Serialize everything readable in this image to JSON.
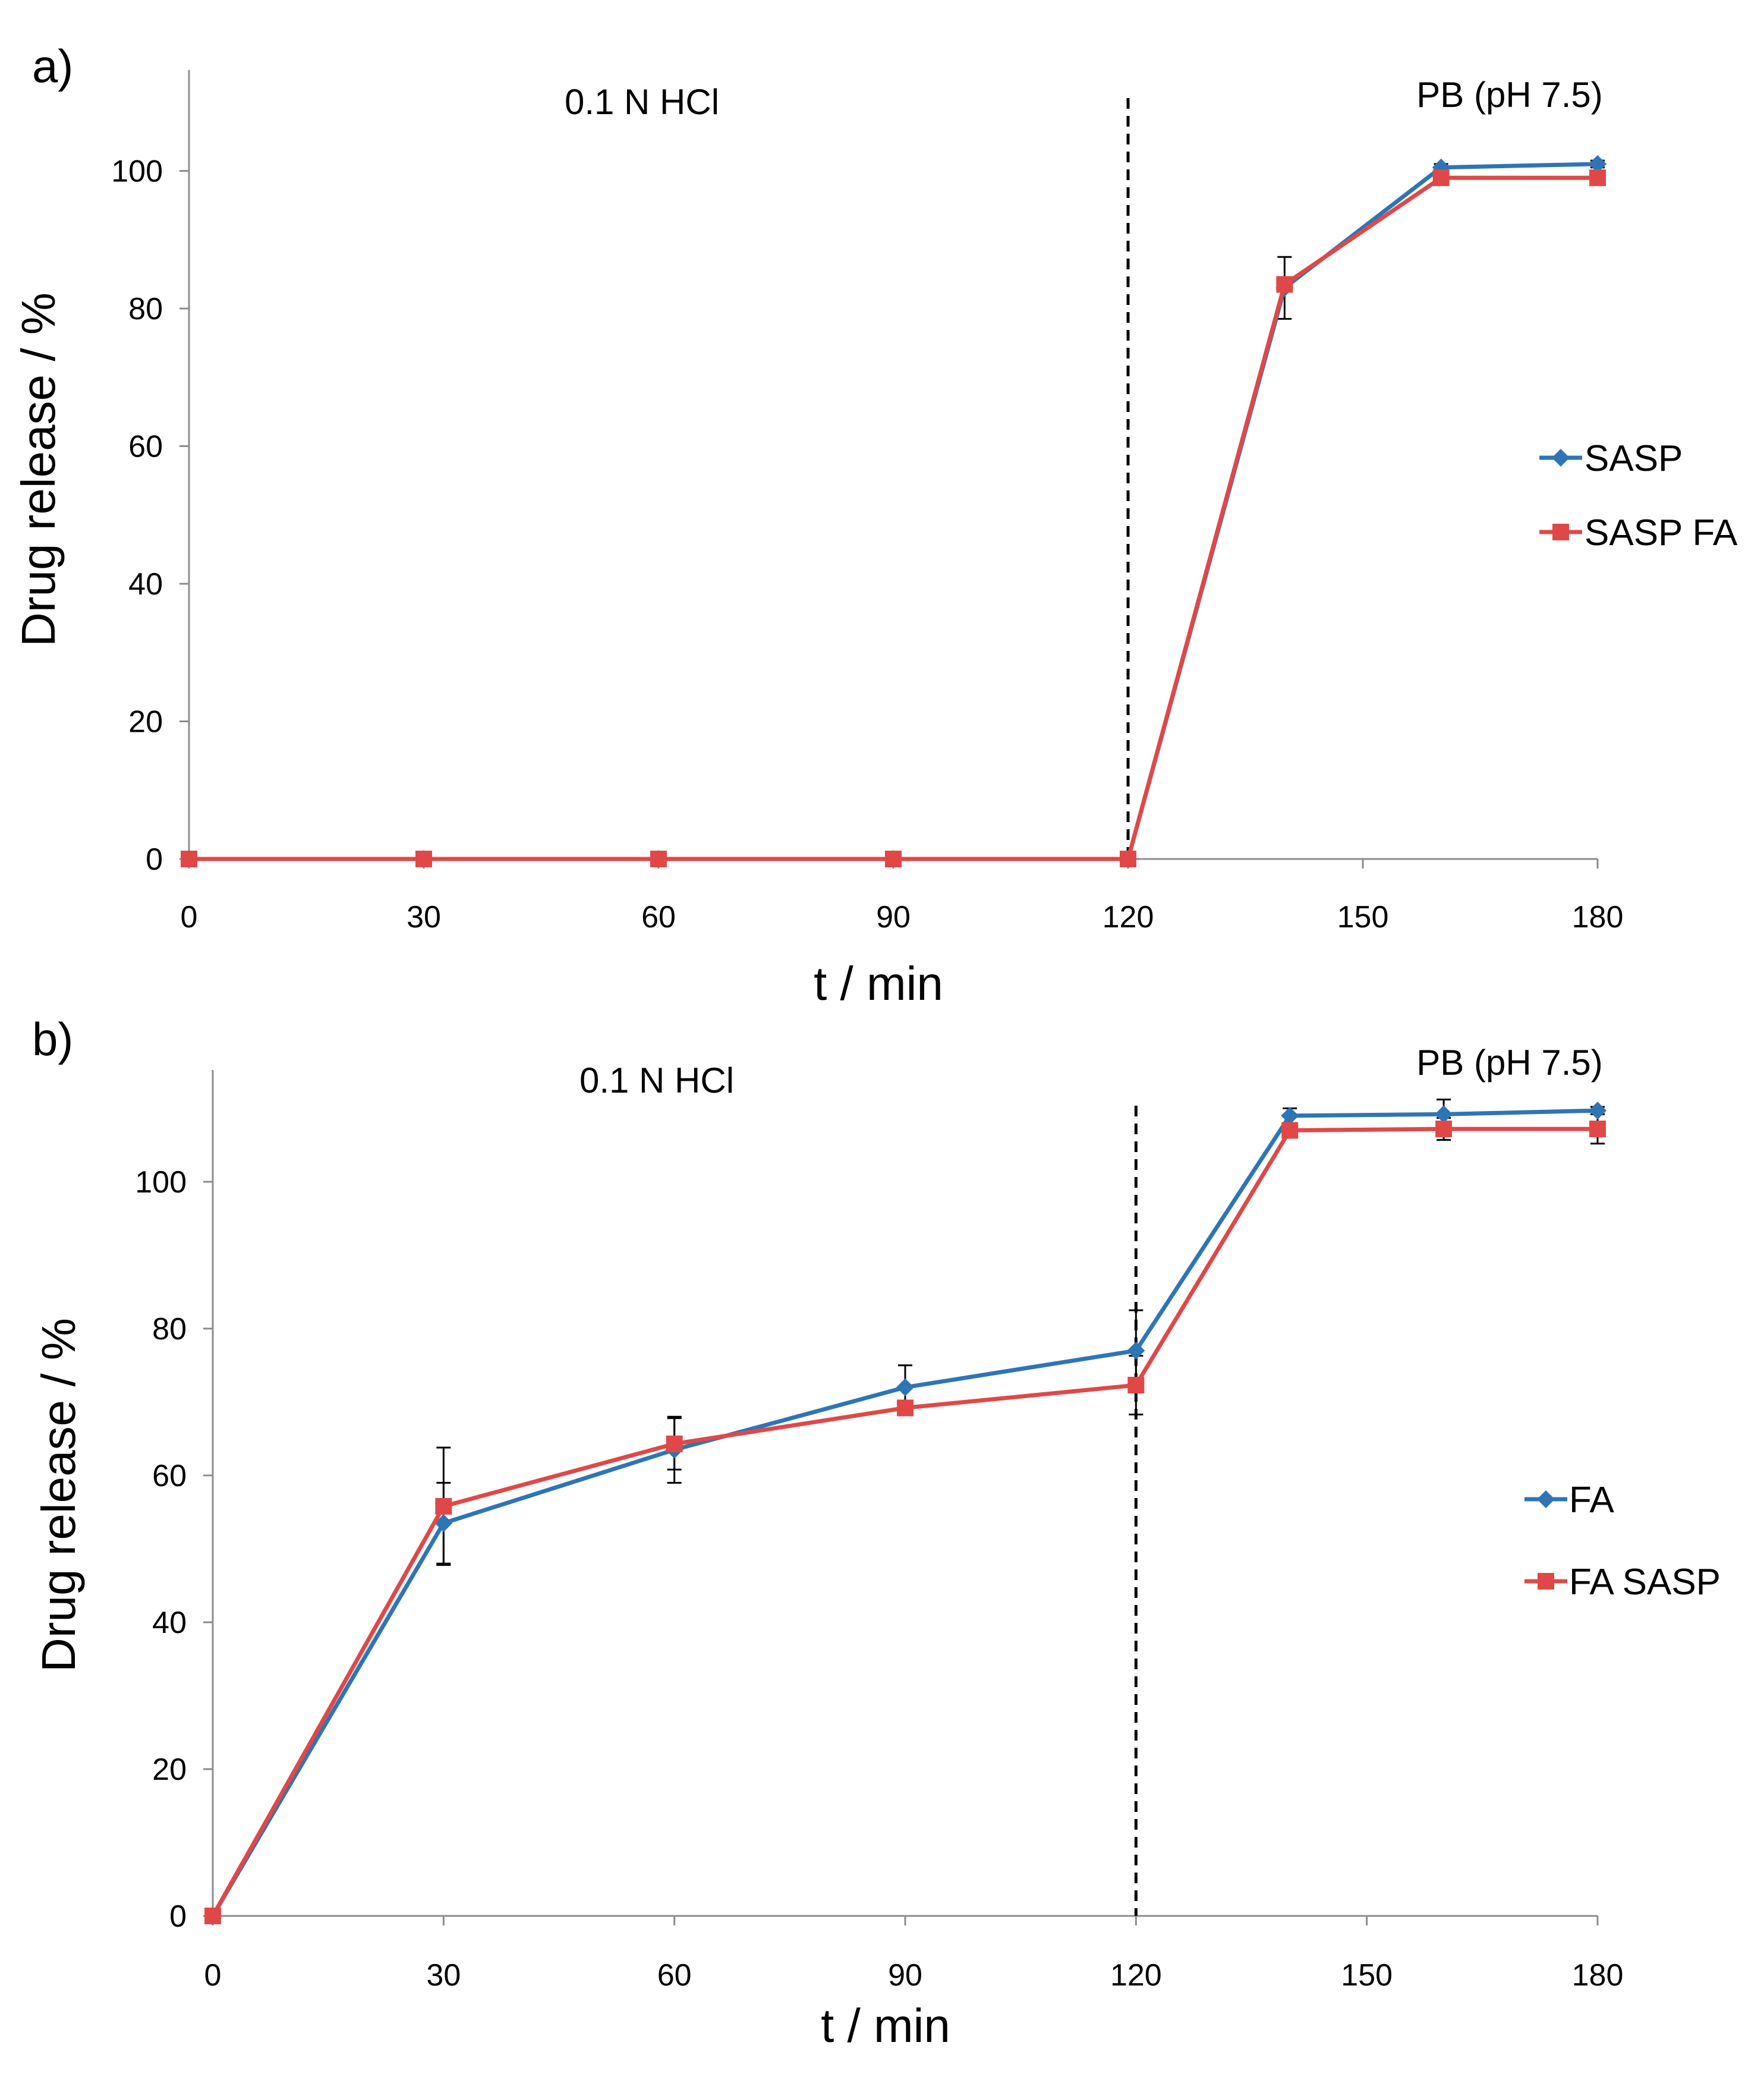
{
  "chart_data": [
    {
      "type": "line",
      "panel_label": "a)",
      "title": "",
      "xlabel": "t / min",
      "ylabel": "Drug release / %",
      "xlim": [
        0,
        180
      ],
      "ylim": [
        0,
        110
      ],
      "x_ticks": [
        "0",
        "30",
        "60",
        "90",
        "120",
        "150",
        "180"
      ],
      "y_ticks": [
        "0",
        "20",
        "40",
        "60",
        "80",
        "100"
      ],
      "grid": false,
      "legend_position": "right",
      "divider_x": 120,
      "region_labels": {
        "left": "0.1 N HCl",
        "right": "PB (pH 7.5)"
      },
      "x": [
        0,
        30,
        60,
        90,
        120,
        140,
        160,
        180
      ],
      "series": [
        {
          "name": "SASP",
          "color": "#2e75b6",
          "marker": "diamond",
          "values": [
            0,
            0,
            0,
            0,
            0,
            83,
            100.5,
            101
          ],
          "error": [
            0,
            0,
            0,
            0,
            0,
            4.5,
            0.5,
            0.5
          ]
        },
        {
          "name": "SASP FA",
          "color": "#e04848",
          "marker": "square",
          "values": [
            0,
            0,
            0,
            0,
            0,
            83.5,
            99,
            99
          ],
          "error": [
            0,
            0,
            0,
            0,
            0,
            0,
            0,
            0
          ]
        }
      ]
    },
    {
      "type": "line",
      "panel_label": "b)",
      "title": "",
      "xlabel": "t / min",
      "ylabel": "Drug release / %",
      "xlim": [
        0,
        180
      ],
      "ylim": [
        0,
        115
      ],
      "x_ticks": [
        "0",
        "30",
        "60",
        "90",
        "120",
        "150",
        "180"
      ],
      "y_ticks": [
        "0",
        "20",
        "40",
        "60",
        "80",
        "100"
      ],
      "grid": false,
      "legend_position": "right",
      "divider_x": 120,
      "region_labels": {
        "left": "0.1 N HCl",
        "right": "PB (pH 7.5)"
      },
      "x": [
        0,
        30,
        60,
        90,
        120,
        140,
        160,
        180
      ],
      "series": [
        {
          "name": "FA",
          "color": "#2e75b6",
          "marker": "diamond",
          "values": [
            0,
            53.5,
            63.5,
            72,
            77,
            109,
            109.2,
            109.7
          ],
          "error": [
            0,
            5.5,
            4.5,
            3,
            5.5,
            1,
            2,
            0.5
          ]
        },
        {
          "name": "FA SASP",
          "color": "#e04848",
          "marker": "square",
          "values": [
            0,
            55.8,
            64.3,
            69.2,
            72.3,
            107,
            107.2,
            107.2
          ],
          "error": [
            0,
            8,
            3.5,
            1,
            4,
            0,
            1.5,
            2
          ]
        }
      ]
    }
  ]
}
